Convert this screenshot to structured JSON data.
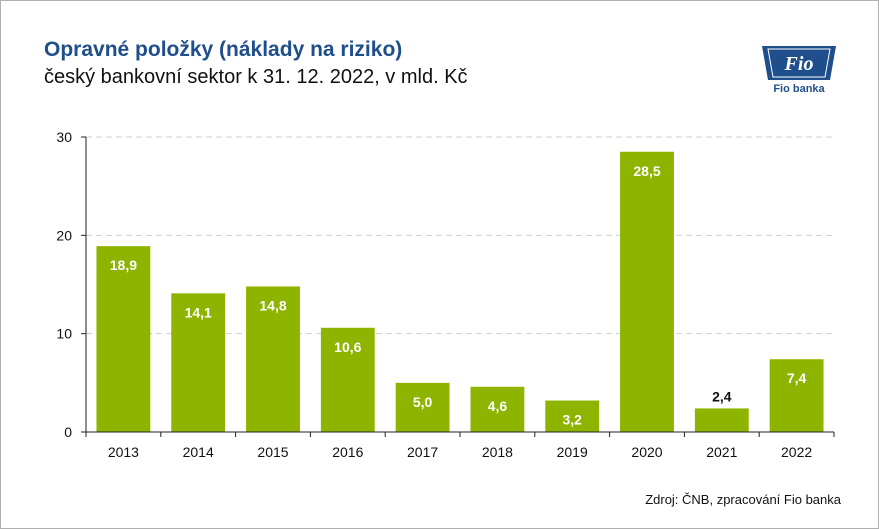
{
  "header": {
    "title": "Opravné položky (náklady na riziko)",
    "subtitle": "český bankovní sektor k 31. 12. 2022, v mld. Kč"
  },
  "logo": {
    "mark": "Fio",
    "name": "Fio banka"
  },
  "footer": {
    "source": "Zdroj: ČNB, zpracování Fio banka"
  },
  "chart_data": {
    "type": "bar",
    "title": "Opravné položky (náklady na riziko)",
    "subtitle": "český bankovní sektor k 31. 12. 2022, v mld. Kč",
    "categories": [
      "2013",
      "2014",
      "2015",
      "2016",
      "2017",
      "2018",
      "2019",
      "2020",
      "2021",
      "2022"
    ],
    "values": [
      18.9,
      14.1,
      14.8,
      10.6,
      5.0,
      4.6,
      3.2,
      28.5,
      2.4,
      7.4
    ],
    "value_labels": [
      "18,9",
      "14,1",
      "14,8",
      "10,6",
      "5,0",
      "4,6",
      "3,2",
      "28,5",
      "2,4",
      "7,4"
    ],
    "y_ticks": [
      "0",
      "10",
      "20",
      "30"
    ],
    "ylim": [
      0,
      30
    ],
    "grid": true,
    "legend": "none",
    "bar_color": "#8fb400"
  }
}
